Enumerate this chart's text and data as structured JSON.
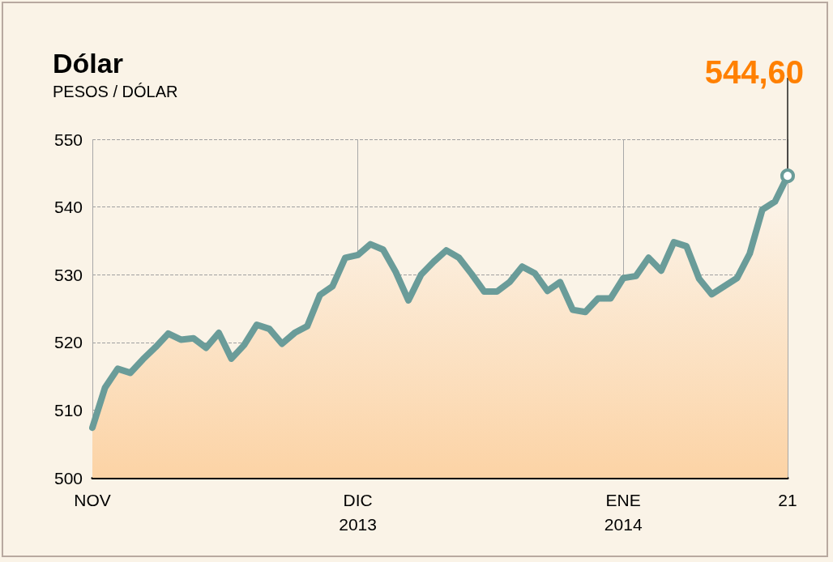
{
  "chart_data": {
    "type": "area",
    "title": "Dólar",
    "subtitle": "PESOS / DÓLAR",
    "categories": [
      "NOV",
      null,
      null,
      null,
      null,
      null,
      null,
      null,
      null,
      null,
      null,
      null,
      null,
      null,
      null,
      null,
      null,
      null,
      null,
      null,
      null,
      "DIC\n2013",
      null,
      null,
      null,
      null,
      null,
      null,
      null,
      null,
      null,
      null,
      null,
      null,
      null,
      null,
      null,
      null,
      null,
      null,
      null,
      null,
      "ENE\n2014",
      null,
      null,
      null,
      null,
      null,
      null,
      null,
      null,
      null,
      null,
      null,
      null,
      "21"
    ],
    "series": [
      {
        "color": "#6a9c99",
        "values": [
          507.4,
          513.3,
          516.1,
          515.5,
          517.5,
          519.3,
          521.3,
          520.4,
          520.6,
          519.2,
          521.4,
          517.6,
          519.6,
          522.6,
          522.0,
          519.8,
          521.4,
          522.4,
          527.0,
          528.3,
          532.5,
          532.9,
          534.5,
          533.7,
          530.4,
          526.2,
          530.0,
          531.9,
          533.6,
          532.5,
          530.1,
          527.5,
          527.5,
          528.9,
          531.2,
          530.2,
          527.6,
          528.9,
          524.8,
          524.5,
          526.5,
          526.5,
          529.5,
          529.8,
          532.5,
          530.6,
          534.8,
          534.2,
          529.4,
          527.1,
          528.3,
          529.5,
          533.1,
          539.6,
          540.8,
          544.6
        ]
      }
    ],
    "ylim": [
      500,
      550
    ],
    "yticks": [
      500,
      510,
      520,
      530,
      540,
      550
    ],
    "grid": true,
    "line_style": "solid",
    "annotations": [
      {
        "text": "544,60",
        "x": "21",
        "y": 544.6
      }
    ]
  }
}
